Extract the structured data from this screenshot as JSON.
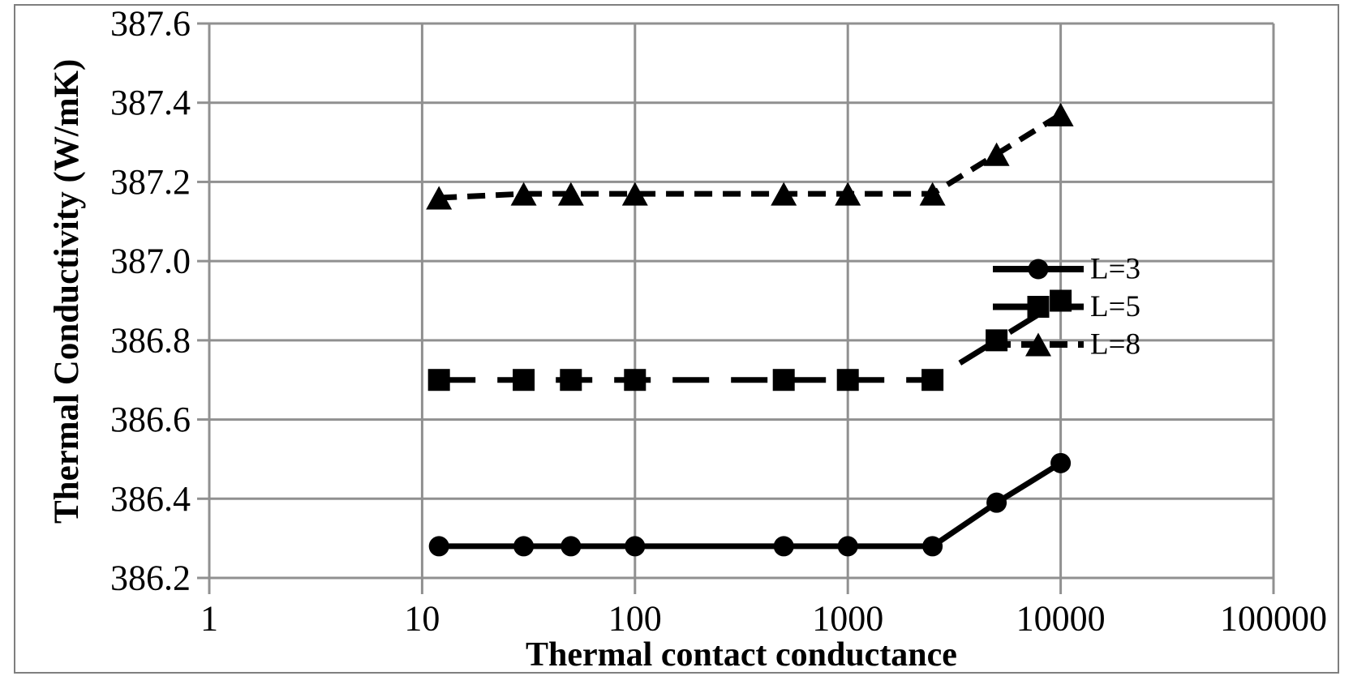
{
  "figure": {
    "background": "#ffffff",
    "border_color": "#7f7f7f"
  },
  "chart_data": {
    "type": "line",
    "title": "",
    "xlabel": "Thermal contact conductance",
    "ylabel": "Thermal Conductivity (W/mK)",
    "x_scale": "log",
    "xlim": [
      1,
      100000
    ],
    "ylim": [
      386.2,
      387.6
    ],
    "x_tick_labels": [
      "1",
      "10",
      "100",
      "1000",
      "10000",
      "100000"
    ],
    "y_tick_labels": [
      "386.2",
      "386.4",
      "386.6",
      "386.8",
      "387.0",
      "387.2",
      "387.4",
      "387.6"
    ],
    "grid": true,
    "legend_position": "inside-right",
    "x": [
      12,
      30,
      50,
      100,
      500,
      1000,
      2500,
      5000,
      10000
    ],
    "series": [
      {
        "name": "L=3",
        "marker": "circle",
        "line_style": "solid",
        "values": [
          386.28,
          386.28,
          386.28,
          386.28,
          386.28,
          386.28,
          386.28,
          386.39,
          386.49
        ]
      },
      {
        "name": "L=5",
        "marker": "square",
        "line_style": "long-dash",
        "values": [
          386.7,
          386.7,
          386.7,
          386.7,
          386.7,
          386.7,
          386.7,
          386.8,
          386.9
        ]
      },
      {
        "name": "L=8",
        "marker": "triangle",
        "line_style": "dash",
        "values": [
          387.16,
          387.17,
          387.17,
          387.17,
          387.17,
          387.17,
          387.17,
          387.27,
          387.37
        ]
      }
    ],
    "colors": {
      "series": "#000000",
      "grid": "#909090",
      "text": "#000000"
    }
  }
}
